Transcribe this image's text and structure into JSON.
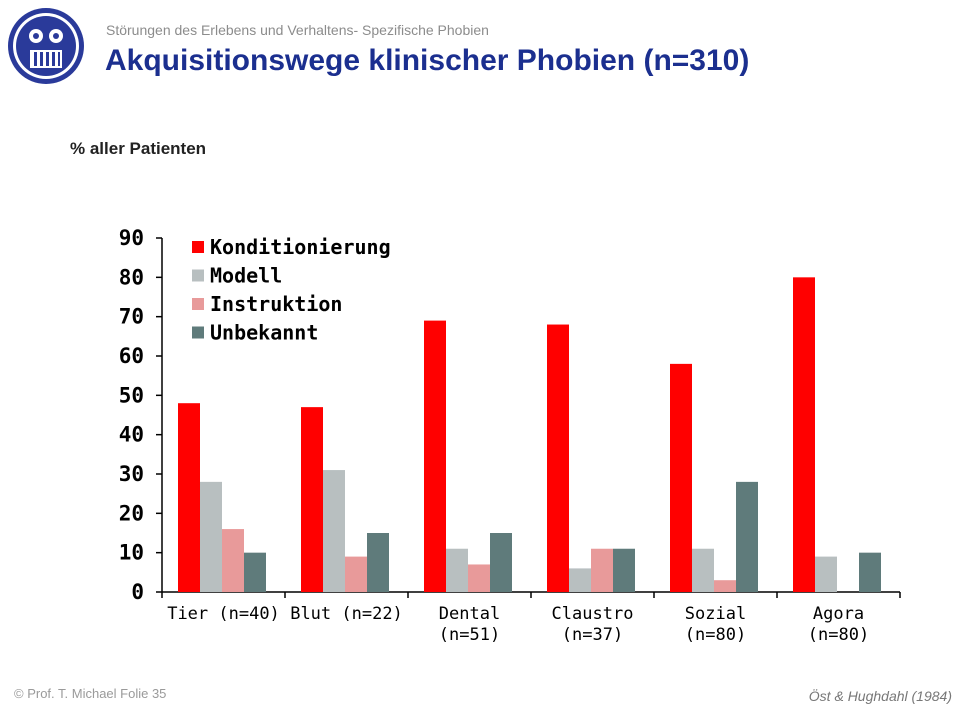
{
  "header": {
    "subtitle": "Störungen des Erlebens und Verhaltens- Spezifische Phobien",
    "title": "Akquisitionswege klinischer Phobien (n=310)"
  },
  "chart_data": {
    "type": "bar",
    "ylabel": "% aller Patienten",
    "ylim": [
      0,
      90
    ],
    "yticks": [
      0,
      10,
      20,
      30,
      40,
      50,
      60,
      70,
      80,
      90
    ],
    "categories": [
      [
        "Tier (n=40)"
      ],
      [
        "Blut (n=22)"
      ],
      [
        "Dental",
        "(n=51)"
      ],
      [
        "Claustro",
        "(n=37)"
      ],
      [
        "Sozial",
        "(n=80)"
      ],
      [
        "Agora",
        "(n=80)"
      ]
    ],
    "legend_position": "top-left",
    "series": [
      {
        "name": "Konditionierung",
        "color": "#ff0000",
        "values": [
          48,
          47,
          69,
          68,
          58,
          80
        ]
      },
      {
        "name": "Modell",
        "color": "#b8bfc0",
        "values": [
          28,
          31,
          11,
          6,
          11,
          9
        ]
      },
      {
        "name": "Instruktion",
        "color": "#e89a9a",
        "values": [
          16,
          9,
          7,
          11,
          3,
          0
        ]
      },
      {
        "name": "Unbekannt",
        "color": "#5f7b7b",
        "values": [
          10,
          15,
          15,
          11,
          28,
          10
        ]
      }
    ]
  },
  "footer": {
    "left": "© Prof. T. Michael Folie 35",
    "right": "Öst & Hughdahl (1984)"
  }
}
